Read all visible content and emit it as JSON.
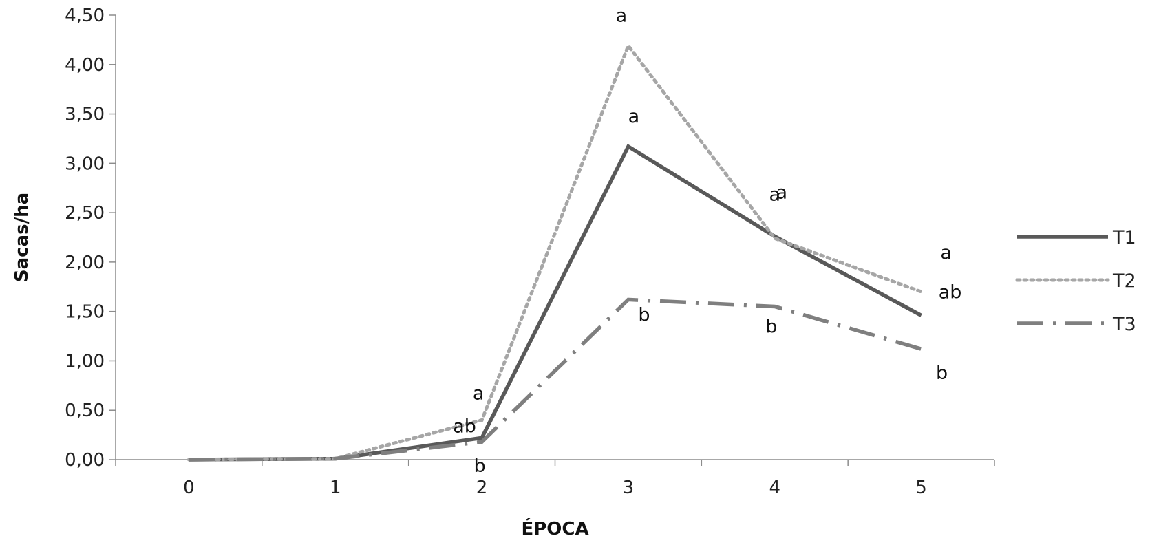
{
  "chart_data": {
    "type": "line",
    "title": "",
    "xlabel": "ÉPOCA",
    "ylabel": "Sacas/ha",
    "categories": [
      "0",
      "1",
      "2",
      "3",
      "4",
      "5"
    ],
    "ylim": [
      0,
      4.5
    ],
    "y_ticks": [
      "0,00",
      "0,50",
      "1,00",
      "1,50",
      "2,00",
      "2,50",
      "3,00",
      "3,50",
      "4,00",
      "4,50"
    ],
    "grid": false,
    "legend_position": "right",
    "series": [
      {
        "name": "T1",
        "values": [
          0,
          0.01,
          0.22,
          3.17,
          2.26,
          1.46
        ],
        "color": "#595959",
        "style": "solid",
        "labels": [
          "",
          "",
          "ab",
          "a",
          "a",
          "ab"
        ]
      },
      {
        "name": "T2",
        "values": [
          0,
          0.01,
          0.4,
          4.19,
          2.24,
          1.7
        ],
        "color": "#a6a6a6",
        "style": "dotted",
        "labels": [
          "",
          "",
          "a",
          "a",
          "a",
          "a"
        ]
      },
      {
        "name": "T3",
        "values": [
          0,
          0.01,
          0.18,
          1.62,
          1.55,
          1.12
        ],
        "color": "#7f7f7f",
        "style": "dashdot",
        "labels": [
          "",
          "",
          "b",
          "b",
          "b",
          "b"
        ]
      }
    ]
  }
}
